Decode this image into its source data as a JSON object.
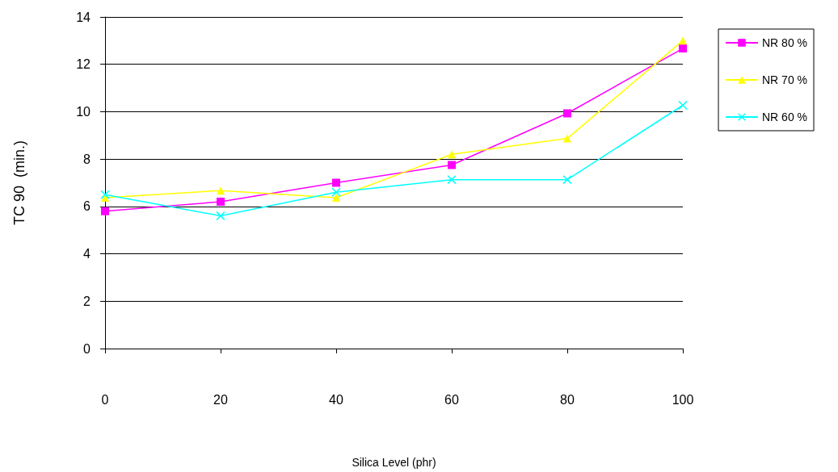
{
  "chart_data": {
    "type": "line",
    "xlabel": "Silica Level (phr)",
    "ylabel": "TC 90  (min.)",
    "x": [
      0,
      20,
      40,
      60,
      80,
      100
    ],
    "xlim": [
      0,
      100
    ],
    "xticks": [
      0,
      20,
      40,
      60,
      80,
      100
    ],
    "ylim": [
      0,
      14
    ],
    "yticks": [
      0,
      2,
      4,
      6,
      8,
      10,
      12,
      14
    ],
    "grid": "y",
    "legend": "right",
    "series": [
      {
        "name": "NR 80 %",
        "color": "#ff00ff",
        "marker": "square",
        "values": [
          5.8,
          6.2,
          7.0,
          7.75,
          9.93,
          12.67
        ]
      },
      {
        "name": "NR 70 %",
        "color": "#ffff00",
        "marker": "triangle",
        "values": [
          6.37,
          6.67,
          6.37,
          8.2,
          8.87,
          13.0
        ]
      },
      {
        "name": "NR 60 %",
        "color": "#00ffff",
        "marker": "cross",
        "values": [
          6.5,
          5.6,
          6.6,
          7.13,
          7.13,
          10.27
        ]
      }
    ]
  }
}
